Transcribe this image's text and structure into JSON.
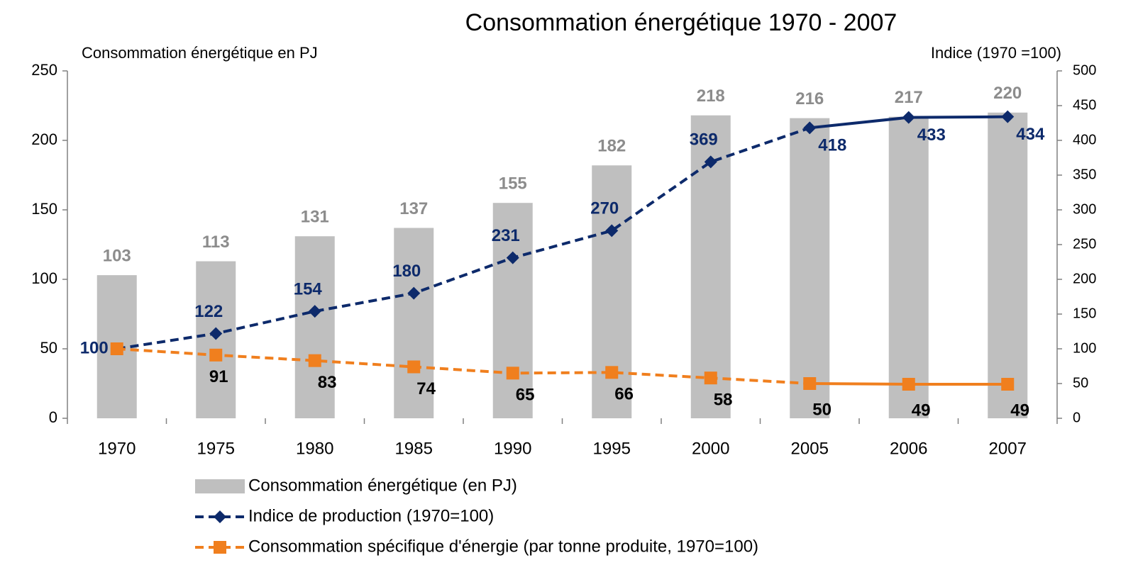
{
  "chart_data": {
    "type": "bar",
    "title": "Consommation énergétique 1970 - 2007",
    "y_axis_label": "Consommation énergétique en PJ",
    "y2_axis_label": "Indice (1970 =100)",
    "categories": [
      "1970",
      "1975",
      "1980",
      "1985",
      "1990",
      "1995",
      "2000",
      "2005",
      "2006",
      "2007"
    ],
    "series": [
      {
        "name": "Consommation énergétique (en PJ)",
        "type": "bar",
        "color": "#bfbfbf",
        "label_color": "#8c8c8c",
        "values": [
          103,
          113,
          131,
          137,
          155,
          182,
          218,
          216,
          217,
          220
        ]
      },
      {
        "name": "Indice de production (1970=100)",
        "type": "line",
        "axis": "y2",
        "color": "#0d2a6b",
        "marker": "diamond",
        "dashed": true,
        "solid_from": "2005",
        "label_color": "#0d2a6b",
        "values": [
          100,
          122,
          154,
          180,
          231,
          270,
          369,
          418,
          433,
          434
        ]
      },
      {
        "name": "Consommation spécifique d'énergie (par tonne produite, 1970=100)",
        "type": "line",
        "axis": "y2",
        "color": "#f07f1e",
        "marker": "square",
        "dashed": true,
        "solid_from": "2005",
        "label_color": "#000000",
        "values": [
          100,
          91,
          83,
          74,
          65,
          66,
          58,
          50,
          49,
          49
        ]
      }
    ],
    "ylim": [
      0,
      250
    ],
    "yticks": [
      0,
      50,
      100,
      150,
      200,
      250
    ],
    "y2lim": [
      0,
      500
    ],
    "y2ticks": [
      0,
      50,
      100,
      150,
      200,
      250,
      300,
      350,
      400,
      450,
      500
    ],
    "grid": false,
    "legend": "bottom"
  }
}
